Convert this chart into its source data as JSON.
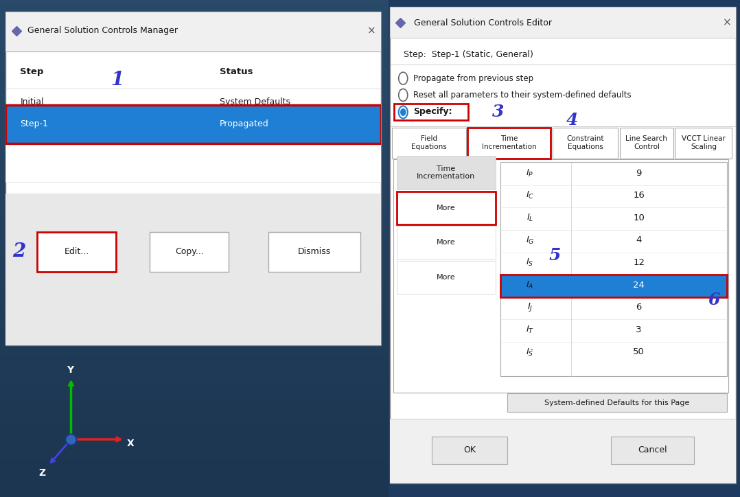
{
  "fig_width": 10.78,
  "fig_height": 7.24,
  "bg_color": "#1e3a5f",
  "white": "#ffffff",
  "blue_highlight": "#1e7fd4",
  "red_border": "#cc0000",
  "blue_label": "#3333cc",
  "left_panel": {
    "title": "General Solution Controls Manager",
    "col1_header": "Step",
    "col2_header": "Status",
    "initial_label": "Initial",
    "initial_status": "System Defaults",
    "step_label": "Step-1",
    "step_status": "Propagated",
    "label1": "1",
    "label2": "2",
    "btn_edit": "Edit...",
    "btn_copy": "Copy...",
    "btn_dismiss": "Dismiss"
  },
  "right_panel": {
    "title": "General Solution Controls Editor",
    "step_line": "Step:  Step-1 (Static, General)",
    "radio1": "Propagate from previous step",
    "radio2": "Reset all parameters to their system-defined defaults",
    "radio3": "Specify:",
    "label3": "3",
    "label4": "4",
    "label5": "5",
    "label6": "6",
    "tabs": [
      "Field\nEquations",
      "Time\nIncrementation",
      "Constraint\nEquations",
      "Line Search\nControl",
      "VCCT Linear\nScaling"
    ],
    "left_tabs": [
      "Time\nIncrementation",
      "More",
      "More",
      "More"
    ],
    "table_rows": [
      [
        "I_P",
        "9"
      ],
      [
        "I_C",
        "16"
      ],
      [
        "I_L",
        "10"
      ],
      [
        "I_G",
        "4"
      ],
      [
        "I_S",
        "12"
      ],
      [
        "I_A",
        "24"
      ],
      [
        "I_J",
        "6"
      ],
      [
        "I_T",
        "3"
      ],
      [
        "I_S5",
        "50"
      ]
    ],
    "highlighted_row": 5,
    "btn_system": "System-defined Defaults for this Page",
    "btn_ok": "OK",
    "btn_cancel": "Cancel"
  }
}
